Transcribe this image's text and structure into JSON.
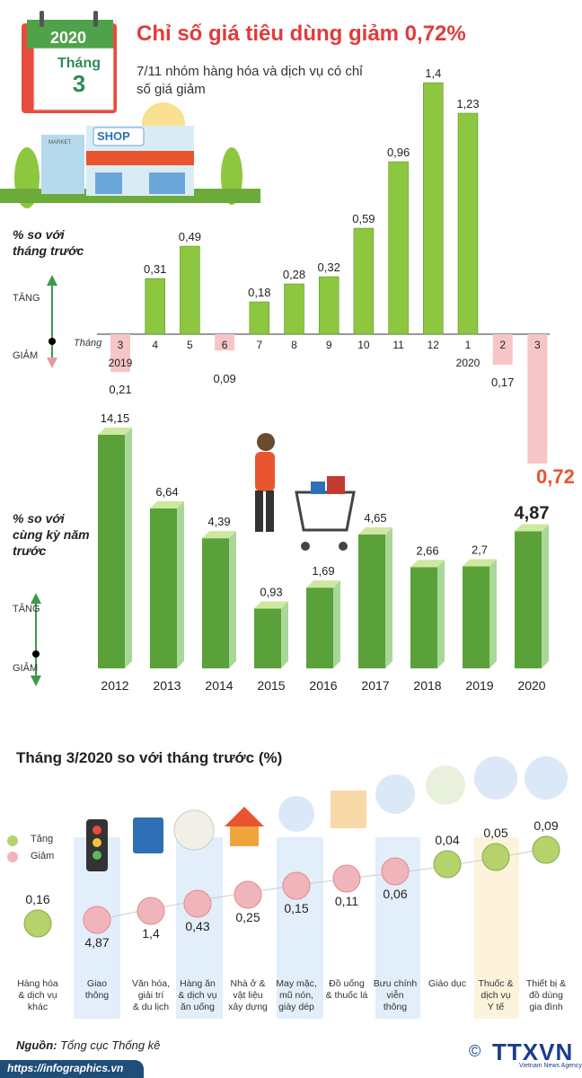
{
  "header": {
    "title": "Chỉ số giá tiêu dùng giảm 0,72%",
    "subtitle": "7/11 nhóm hàng hóa và dịch vụ có chỉ số giá giảm",
    "calendar_year": "2020",
    "calendar_month": "Tháng",
    "calendar_day": "3",
    "shop_sign": "SHOP",
    "market_sign": "MARKET"
  },
  "colors": {
    "green": "#8dc63f",
    "green_dark": "#4e8a2a",
    "pink": "#f6c6c6",
    "pink_dot": "#e99a9f",
    "red": "#e8552f",
    "title_red": "#e23b3b"
  },
  "chart_data": [
    {
      "type": "bar",
      "ylabel": "% so với tháng trước",
      "up_label": "TĂNG",
      "down_label": "GIẢM",
      "x_axis_label": "Tháng",
      "categories": [
        "3",
        "4",
        "5",
        "6",
        "7",
        "8",
        "9",
        "10",
        "11",
        "12",
        "1",
        "2",
        "3"
      ],
      "year_labels": [
        {
          "index": 0,
          "text": "2019"
        },
        {
          "index": 10,
          "text": "2020"
        }
      ],
      "values": [
        -0.21,
        0.31,
        0.49,
        -0.09,
        0.18,
        0.28,
        0.32,
        0.59,
        0.96,
        1.4,
        1.23,
        -0.17,
        -0.72
      ],
      "value_labels": [
        "0,21",
        "0,31",
        "0,49",
        "0,09",
        "0,18",
        "0,28",
        "0,32",
        "0,59",
        "0,96",
        "1,4",
        "1,23",
        "0,17",
        "0,72"
      ]
    },
    {
      "type": "bar",
      "ylabel": "% so với cùng kỳ năm trước",
      "up_label": "TĂNG",
      "down_label": "GIẢM",
      "categories": [
        "2012",
        "2013",
        "2014",
        "2015",
        "2016",
        "2017",
        "2018",
        "2019",
        "2020"
      ],
      "values": [
        14.15,
        6.64,
        4.39,
        0.93,
        1.69,
        4.65,
        2.66,
        2.7,
        4.87
      ],
      "value_labels": [
        "14,15",
        "6,64",
        "4,39",
        "0,93",
        "1,69",
        "4,65",
        "2,66",
        "2,7",
        "4,87"
      ]
    },
    {
      "type": "scatter",
      "title": "Tháng 3/2020 so với tháng trước (%)",
      "legend": [
        {
          "name": "Tăng"
        },
        {
          "name": "Giảm"
        }
      ],
      "categories": [
        "Hàng hóa & dịch vụ khác",
        "Giao thông",
        "Văn hóa, giải trí & du lịch",
        "Hàng ăn & dịch vụ ăn uống",
        "Nhà ở & vật liệu xây dựng",
        "May mặc, mũ nón, giày dép",
        "Đồ uống & thuốc lá",
        "Bưu chính viễn thông",
        "Giáo dục",
        "Thuốc & dịch vụ Y tế",
        "Thiết bị & đồ dùng gia đình"
      ],
      "values": [
        0.16,
        -4.87,
        -1.4,
        -0.43,
        -0.25,
        -0.15,
        -0.11,
        -0.06,
        0.04,
        0.05,
        0.09
      ],
      "value_labels": [
        "0,16",
        "4,87",
        "1,4",
        "0,43",
        "0,25",
        "0,15",
        "0,11",
        "0,06",
        "0,04",
        "0,05",
        "0,09"
      ]
    }
  ],
  "source": {
    "label": "Nguồn:",
    "text": "Tổng cục Thống kê"
  },
  "footer": {
    "url": "https://infographics.vn",
    "logo": "TTXVN",
    "logo_sub": "Vietnam News Agency",
    "copyright": "©"
  }
}
